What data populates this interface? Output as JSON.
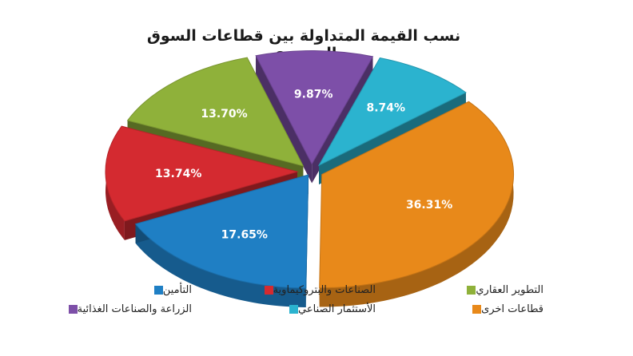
{
  "chart_data": {
    "type": "pie",
    "title": "نسب القيمة المتداولة بين قطاعات السوق السعودي",
    "slices": [
      {
        "name": "قطاعات اخرى",
        "value": 36.31,
        "label": "36.31%",
        "color": "#e8891a"
      },
      {
        "name": "التأمين",
        "value": 17.65,
        "label": "17.65%",
        "color": "#1f7fc4"
      },
      {
        "name": "الصناعات والبتروكيماوية",
        "value": 13.74,
        "label": "13.74%",
        "color": "#d42a30"
      },
      {
        "name": "التطوير العقاري",
        "value": 13.7,
        "label": "13.70%",
        "color": "#8fb13a"
      },
      {
        "name": "الزراعة والصناعات الغذائية",
        "value": 9.87,
        "label": "9.87%",
        "color": "#7d4fa8"
      },
      {
        "name": "الأستثمار الصناعي",
        "value": 8.74,
        "label": "8.74%",
        "color": "#2bb3cf"
      }
    ],
    "legend_position": "bottom"
  }
}
